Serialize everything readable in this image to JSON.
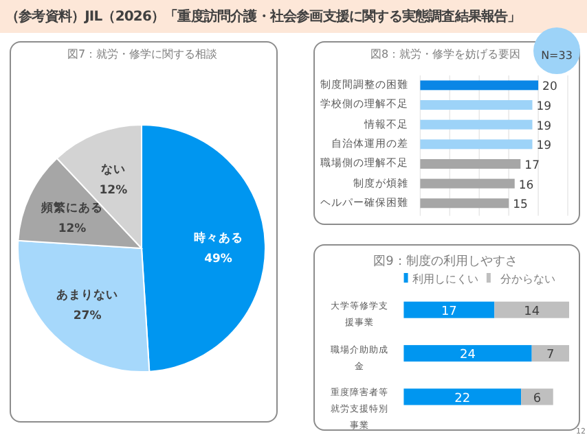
{
  "chart_data": [
    {
      "type": "pie",
      "title": "図7：就労・修学に関する相談",
      "annotations": [
        "（参考資料）JIL（2026）「重度訪問介護・社会参画支援に関する実態調査結果報告」"
      ],
      "categories": [
        "時々ある",
        "あまりない",
        "頻繁にある",
        "ない"
      ],
      "values": [
        49,
        27,
        12,
        12
      ],
      "value_labels": [
        "49%",
        "27%",
        "12%",
        "12%"
      ],
      "colors": [
        "#0096f0",
        "#a6d8fb",
        "#a6a6a6",
        "#d3d3d3"
      ],
      "data_labels": true
    },
    {
      "type": "bar",
      "orientation": "horizontal",
      "title": "図8：就労・修学を妨げる要因",
      "annotations": [
        "N=33"
      ],
      "categories": [
        "制度間調整の困難",
        "学校側の理解不足",
        "情報不足",
        "自治体運用の差",
        "職場側の理解不足",
        "制度が煩雑",
        "ヘルパー確保困難"
      ],
      "values": [
        20,
        19,
        19,
        19,
        17,
        16,
        15
      ],
      "colors": [
        "#0a86e6",
        "#9dd3f8",
        "#9dd3f8",
        "#9dd3f8",
        "#a6a6a6",
        "#a6a6a6",
        "#a6a6a6"
      ],
      "data_labels": true,
      "xlim": [
        0,
        25
      ],
      "xticks": [
        {
          "value": 0,
          "label": null
        },
        {
          "value": 5,
          "label": null
        },
        {
          "value": 10,
          "label": null
        },
        {
          "value": 15,
          "label": null
        },
        {
          "value": 20,
          "label": null
        },
        {
          "value": 25,
          "label": null
        }
      ],
      "grid": "x"
    },
    {
      "type": "bar",
      "orientation": "horizontal",
      "stacked": true,
      "title": "図9：制度の利用しやすさ",
      "annotations": [
        "12"
      ],
      "categories": [
        "大学等修学支援事業",
        "職場介助助成金",
        "重度障害者等就労支援特別事業"
      ],
      "data_labels": true,
      "legend": "top",
      "series": [
        {
          "name": "利用しにくい",
          "color": "#0096f0",
          "values": [
            17,
            24,
            22
          ]
        },
        {
          "name": "分からない",
          "color": "#bfbfbf",
          "values": [
            14,
            7,
            6
          ]
        }
      ]
    }
  ]
}
